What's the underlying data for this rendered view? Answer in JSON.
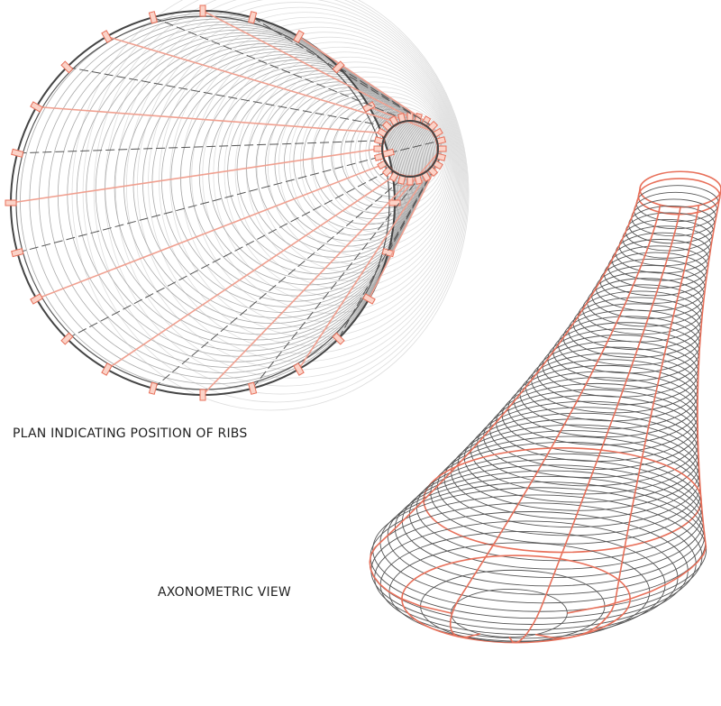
{
  "plan": {
    "caption": "PLAN INDICATING POSITION OF RIBS"
  },
  "axonometric": {
    "caption": "AXONOMETRIC VIEW"
  }
}
